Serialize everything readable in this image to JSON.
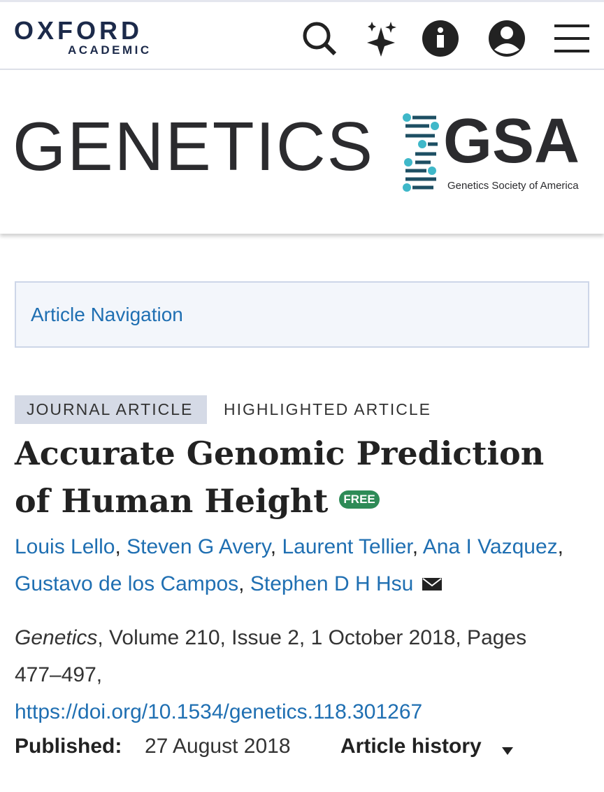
{
  "header": {
    "brand_top": "OXFORD",
    "brand_bottom": "ACADEMIC"
  },
  "banner": {
    "journal": "GENETICS",
    "society_abbr": "GSA",
    "society_name": "Genetics Society of America"
  },
  "navigation": {
    "label": "Article Navigation"
  },
  "article": {
    "tags": [
      "JOURNAL ARTICLE",
      "HIGHLIGHTED ARTICLE"
    ],
    "title": "Accurate Genomic Prediction of Human Height",
    "access_badge": "FREE",
    "authors": [
      "Louis Lello",
      "Steven G Avery",
      "Laurent Tellier",
      "Ana I Vazquez",
      "Gustavo de los Campos",
      "Stephen D H Hsu"
    ],
    "author_separator": ",",
    "citation": {
      "journal": "Genetics",
      "details": ", Volume 210, Issue 2, 1 October 2018, Pages 477–497,",
      "doi": "https://doi.org/10.1534/genetics.118.301267"
    },
    "published_label": "Published:",
    "published_date": "27 August 2018",
    "history_label": "Article history"
  }
}
